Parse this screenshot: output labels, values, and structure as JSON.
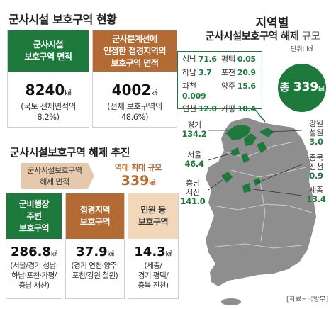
{
  "left_top": {
    "title": "군사시설 보호구역 현황",
    "card1": {
      "header_l1": "군사시설",
      "header_l2": "보호구역 면적",
      "value": "8240",
      "unit": "㎢",
      "note_l1": "(국토 전체면적의",
      "note_l2": "8.2%)"
    },
    "card2": {
      "header_l1": "군사분계선에",
      "header_l2": "인접한 접경지역의",
      "header_l3": "보호구역 면적",
      "value": "4002",
      "unit": "㎢",
      "note_l1": "(전체 보호구역의",
      "note_l2": "48.6%)"
    }
  },
  "left_mid": {
    "title": "군사시설보호구역 해제 추진",
    "box_label_l1": "군사시설보호구역",
    "box_label_l2": "해제 면적",
    "record_label": "역대 최대 규모",
    "record_value": "339",
    "record_unit": "㎢"
  },
  "left_bottom": {
    "cards": [
      {
        "header": [
          "군비행장",
          "주변",
          "보호구역"
        ],
        "value": "286.8",
        "unit": "㎢",
        "note": [
          "(서울/경기 성남·",
          "하남·포천·가평/",
          "충남 서산)"
        ],
        "color": "#1e7a3c"
      },
      {
        "header": [
          "접경지역",
          "보호구역"
        ],
        "value": "37.9",
        "unit": "㎢",
        "note": [
          "(경기 연천·양주·",
          "포천/강원 철원)"
        ],
        "color": "#b36a33"
      },
      {
        "header": [
          "민원 등",
          "보호구역"
        ],
        "value": "14.3",
        "unit": "㎢",
        "note": [
          "(세종/",
          "경기 평택/",
          "충북 진천)"
        ],
        "color": "#b36a33"
      }
    ]
  },
  "right": {
    "title_l1": "지역별",
    "title_l2": "군사시설보호구역 해제",
    "title_suffix": "규모",
    "unit_note": "단위: ㎢",
    "callout": [
      {
        "name": "성남",
        "value": "71.6"
      },
      {
        "name": "평택",
        "value": "0.05"
      },
      {
        "name": "하남",
        "value": "3.7"
      },
      {
        "name": "포천",
        "value": "20.9"
      },
      {
        "name": "과천",
        "value": "0.009"
      },
      {
        "name": "양주",
        "value": "15.6"
      },
      {
        "name": "연천",
        "value": "12.0"
      },
      {
        "name": "가평",
        "value": "10.4"
      }
    ],
    "total_label": "총",
    "total_value": "339",
    "total_unit": "㎢",
    "regions": {
      "gyeonggi": {
        "name": "경기",
        "value": "134.2"
      },
      "seoul": {
        "name": "서울",
        "value": "46.4"
      },
      "chungnam_l1": "충남",
      "chungnam_l2": "서산",
      "chungnam_value": "141.0",
      "gangwon_l1": "강원",
      "gangwon_l2": "철원",
      "gangwon_value": "3.0",
      "chungbuk_l1": "충북",
      "chungbuk_l2": "진천",
      "chungbuk_value": "0.9",
      "sejong": {
        "name": "세종",
        "value": "13.4"
      }
    },
    "source": "[자료=국방부]"
  },
  "colors": {
    "green": "#1e7a3c",
    "brown": "#b36a33",
    "map_gray": "#8e8e8e"
  }
}
